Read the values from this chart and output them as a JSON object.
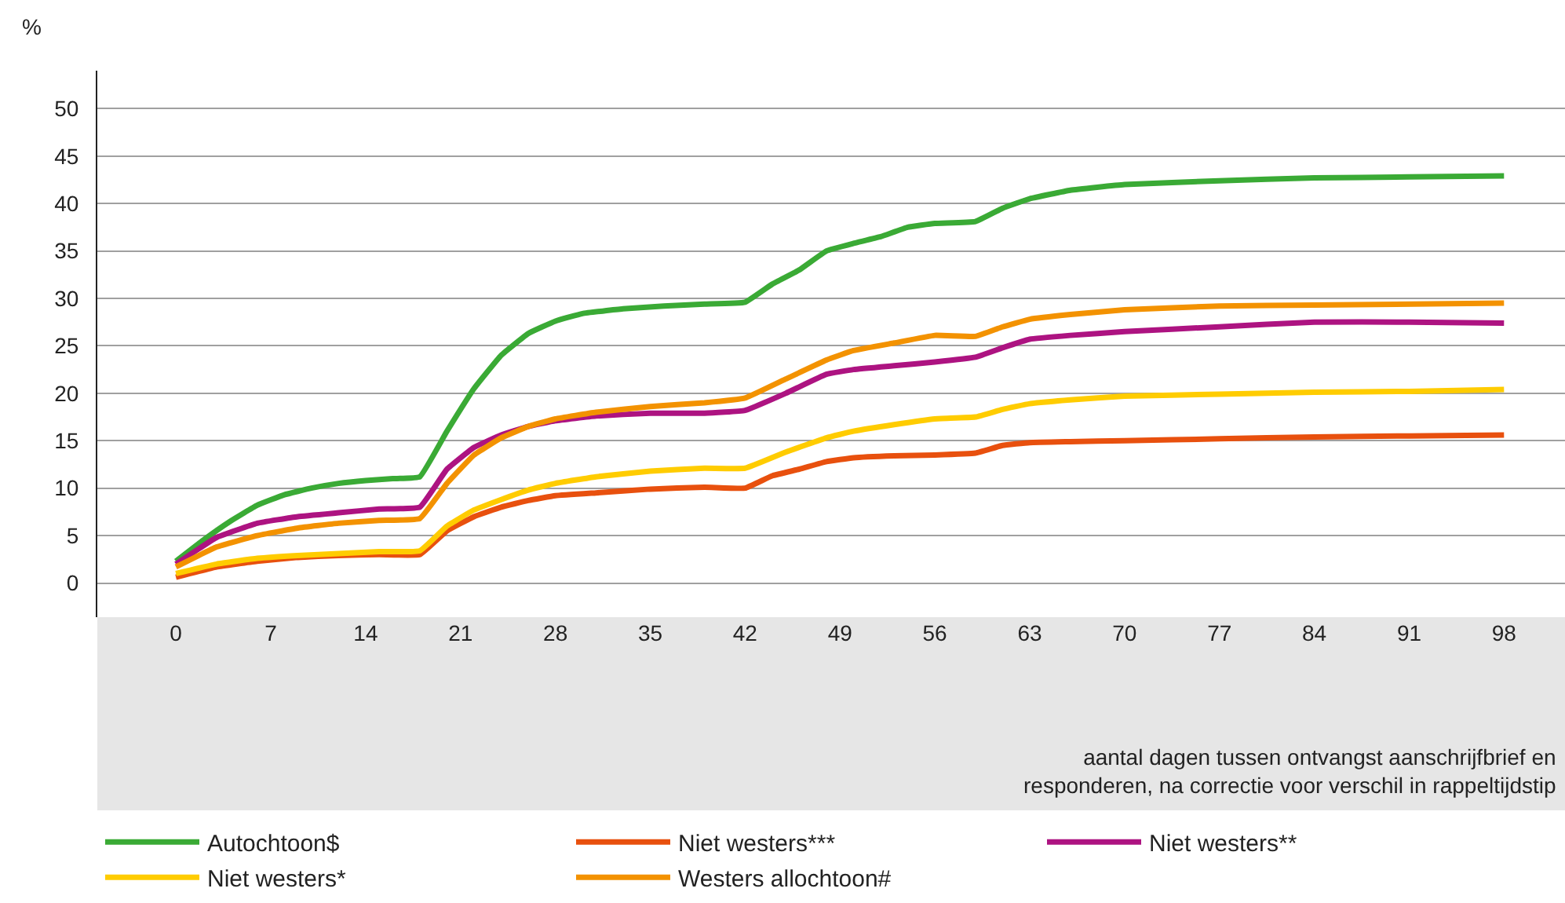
{
  "chart_data": {
    "type": "line",
    "ylabel": "%",
    "xlabel": "aantal dagen tussen ontvangst aanschrijfbrief en\nresponderen, na correctie voor verschil in rappeltijdstip",
    "xlim": [
      -5.8,
      102.5
    ],
    "xticks": [
      0,
      7,
      14,
      21,
      28,
      35,
      42,
      49,
      56,
      63,
      70,
      77,
      84,
      91,
      98
    ],
    "ylim": [
      -3.6,
      54
    ],
    "yticks": [
      0,
      5,
      10,
      15,
      20,
      25,
      30,
      35,
      40,
      45,
      50
    ],
    "grid": "y",
    "legend": "bottom",
    "marker": "none",
    "line_style": "solid",
    "series": [
      {
        "name": "Autochtoon$",
        "color": "#3aaa35",
        "x": [
          0,
          2,
          4,
          6,
          8,
          10,
          12,
          14,
          16,
          18,
          20,
          22,
          24,
          26,
          28,
          30,
          33,
          36,
          39,
          42,
          44,
          46,
          48,
          50,
          52,
          54,
          56,
          59,
          61,
          63,
          66,
          70,
          77,
          84,
          91,
          98
        ],
        "values": [
          2.3,
          4.5,
          6.5,
          8.2,
          9.3,
          10,
          10.5,
          10.8,
          11,
          11.2,
          16,
          20.5,
          24,
          26.3,
          27.6,
          28.4,
          28.9,
          29.2,
          29.4,
          29.6,
          31.5,
          33,
          35,
          35.8,
          36.5,
          37.5,
          37.9,
          38.1,
          39.5,
          40.5,
          41.4,
          42,
          42.4,
          42.7,
          42.8,
          42.9
        ]
      },
      {
        "name": "Niet westers***",
        "color": "#e8500e",
        "x": [
          0,
          3,
          6,
          9,
          12,
          15,
          18,
          20,
          22,
          24,
          26,
          28,
          31,
          35,
          39,
          42,
          44,
          46,
          48,
          50,
          53,
          56,
          59,
          61,
          63,
          66,
          70,
          77,
          84,
          91,
          98
        ],
        "values": [
          0.6,
          1.7,
          2.3,
          2.7,
          2.9,
          3,
          3,
          5.5,
          7,
          8,
          8.7,
          9.2,
          9.5,
          9.9,
          10.1,
          10,
          11.3,
          12,
          12.8,
          13.2,
          13.4,
          13.5,
          13.7,
          14.5,
          14.8,
          14.9,
          15,
          15.2,
          15.4,
          15.5,
          15.6
        ]
      },
      {
        "name": "Niet westers**",
        "color": "#ad1381",
        "x": [
          0,
          3,
          6,
          9,
          12,
          15,
          18,
          20,
          22,
          24,
          26,
          28,
          31,
          35,
          39,
          42,
          45,
          48,
          50,
          53,
          56,
          59,
          61,
          63,
          66,
          70,
          77,
          84,
          91,
          98
        ],
        "values": [
          2,
          4.8,
          6.3,
          7,
          7.4,
          7.8,
          8,
          12,
          14.3,
          15.6,
          16.5,
          17.1,
          17.6,
          17.9,
          17.9,
          18.2,
          20,
          22,
          22.5,
          22.9,
          23.3,
          23.8,
          24.8,
          25.7,
          26.1,
          26.5,
          27,
          27.5,
          27.5,
          27.4
        ]
      },
      {
        "name": "Niet westers*",
        "color": "#ffcc00",
        "x": [
          0,
          3,
          6,
          9,
          12,
          15,
          18,
          20,
          22,
          24,
          26,
          28,
          31,
          35,
          39,
          42,
          45,
          48,
          50,
          53,
          56,
          59,
          61,
          63,
          66,
          70,
          77,
          84,
          91,
          98
        ],
        "values": [
          1,
          2,
          2.6,
          2.9,
          3.1,
          3.3,
          3.4,
          6,
          7.7,
          8.8,
          9.8,
          10.5,
          11.2,
          11.8,
          12.1,
          12.1,
          13.8,
          15.3,
          16,
          16.7,
          17.3,
          17.5,
          18.3,
          18.9,
          19.3,
          19.7,
          19.9,
          20.1,
          20.2,
          20.4
        ]
      },
      {
        "name": "Westers allochtoon#",
        "color": "#f39200",
        "x": [
          0,
          3,
          6,
          9,
          12,
          15,
          18,
          20,
          22,
          24,
          26,
          28,
          31,
          35,
          39,
          42,
          45,
          48,
          50,
          53,
          56,
          59,
          61,
          63,
          66,
          70,
          77,
          84,
          98
        ],
        "values": [
          1.7,
          3.8,
          5,
          5.8,
          6.3,
          6.6,
          6.8,
          10.5,
          13.5,
          15.3,
          16.5,
          17.3,
          18,
          18.6,
          19,
          19.5,
          21.5,
          23.5,
          24.5,
          25.3,
          26.1,
          26,
          27,
          27.8,
          28.3,
          28.8,
          29.2,
          29.3,
          29.5
        ]
      }
    ]
  }
}
